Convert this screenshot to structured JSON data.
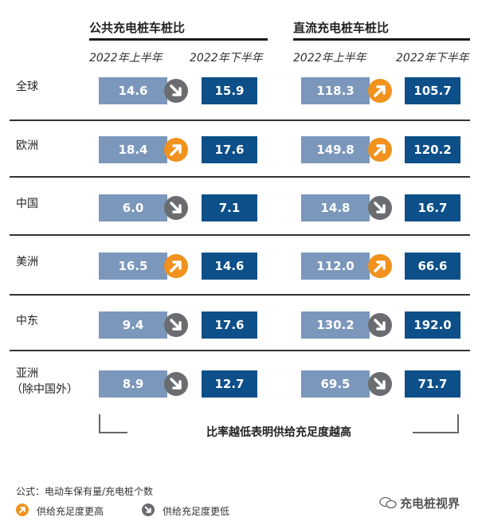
{
  "chart_data": {
    "type": "table",
    "columns": [
      {
        "title": "公共充电桩车桩比",
        "periods": [
          "2022年上半年",
          "2022年下半年"
        ]
      },
      {
        "title": "直流充电桩车桩比",
        "periods": [
          "2022年上半年",
          "2022年下半年"
        ]
      }
    ],
    "rows": [
      {
        "region": [
          "全球"
        ],
        "public": {
          "h1": "14.6",
          "h2": "15.9",
          "trend": "down"
        },
        "dc": {
          "h1": "118.3",
          "h2": "105.7",
          "trend": "up"
        }
      },
      {
        "region": [
          "欧洲"
        ],
        "public": {
          "h1": "18.4",
          "h2": "17.6",
          "trend": "up"
        },
        "dc": {
          "h1": "149.8",
          "h2": "120.2",
          "trend": "up"
        }
      },
      {
        "region": [
          "中国"
        ],
        "public": {
          "h1": "6.0",
          "h2": "7.1",
          "trend": "down"
        },
        "dc": {
          "h1": "14.8",
          "h2": "16.7",
          "trend": "down"
        }
      },
      {
        "region": [
          "美洲"
        ],
        "public": {
          "h1": "16.5",
          "h2": "14.6",
          "trend": "up"
        },
        "dc": {
          "h1": "112.0",
          "h2": "66.6",
          "trend": "up"
        }
      },
      {
        "region": [
          "中东"
        ],
        "public": {
          "h1": "9.4",
          "h2": "17.6",
          "trend": "down"
        },
        "dc": {
          "h1": "130.2",
          "h2": "192.0",
          "trend": "down"
        }
      },
      {
        "region": [
          "亚洲",
          "（除中国外）"
        ],
        "public": {
          "h1": "8.9",
          "h2": "12.7",
          "trend": "down"
        },
        "dc": {
          "h1": "69.5",
          "h2": "71.7",
          "trend": "down"
        }
      }
    ],
    "bracket_label": "比率越低表明供给充足度越高",
    "formula": "公式：电动车保有量/充电桩个数",
    "legend": [
      {
        "trend": "up",
        "label": "供给充足度更高"
      },
      {
        "trend": "down",
        "label": "供给充足度更低"
      }
    ]
  },
  "watermark": "充电桩视界",
  "colors": {
    "h1_box": "#7b97bb",
    "h2_box": "#0d4f88",
    "up": "#f0921d",
    "down": "#6a6c70"
  }
}
